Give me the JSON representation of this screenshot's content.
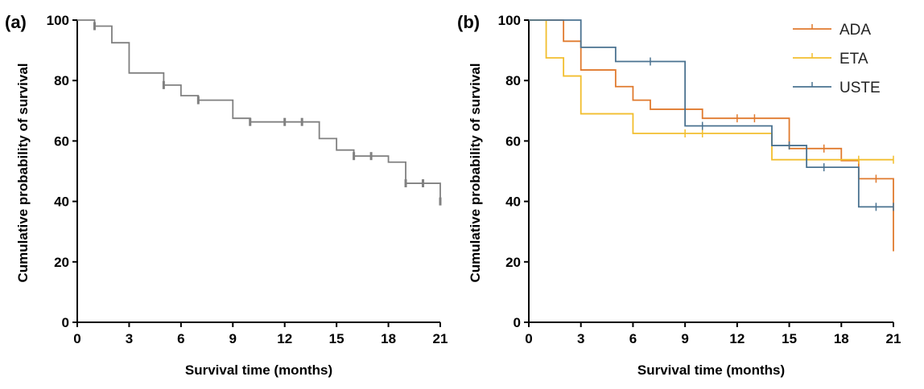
{
  "chart_data": [
    {
      "panel_label": "(a)",
      "type": "line",
      "step": true,
      "xlabel": "Survival time (months)",
      "ylabel": "Cumulative probability of survival",
      "xlim": [
        0,
        21
      ],
      "ylim": [
        0,
        100
      ],
      "xticks": [
        0,
        3,
        6,
        9,
        12,
        15,
        18,
        21
      ],
      "yticks": [
        0,
        20,
        40,
        60,
        80,
        100
      ],
      "grid": false,
      "legend": false,
      "series": [
        {
          "color": "#808080",
          "steps": [
            [
              0,
              100
            ],
            [
              1,
              98
            ],
            [
              2,
              92.5
            ],
            [
              3,
              82.5
            ],
            [
              5,
              78.5
            ],
            [
              6,
              75
            ],
            [
              7,
              73.5
            ],
            [
              9,
              67.5
            ],
            [
              10,
              66.3
            ],
            [
              14,
              60.8
            ],
            [
              15,
              57
            ],
            [
              16,
              55
            ],
            [
              18,
              53
            ],
            [
              19,
              46
            ],
            [
              21,
              40
            ]
          ],
          "end": 21,
          "censored": [
            [
              1,
              98
            ],
            [
              5,
              78.5
            ],
            [
              7,
              73.5
            ],
            [
              10,
              66.3
            ],
            [
              12,
              66.3
            ],
            [
              13,
              66.3
            ],
            [
              16,
              55
            ],
            [
              17,
              55
            ],
            [
              19,
              46
            ],
            [
              20,
              46
            ],
            [
              21,
              40
            ]
          ]
        }
      ]
    },
    {
      "panel_label": "(b)",
      "type": "line",
      "step": true,
      "xlabel": "Survival time (months)",
      "ylabel": "Cumulative probability of survival",
      "xlim": [
        0,
        21
      ],
      "ylim": [
        0,
        100
      ],
      "xticks": [
        0,
        3,
        6,
        9,
        12,
        15,
        18,
        21
      ],
      "yticks": [
        0,
        20,
        40,
        60,
        80,
        100
      ],
      "grid": false,
      "legend": "top-right",
      "series": [
        {
          "name": "ADA",
          "color": "#E07A2E",
          "steps": [
            [
              0,
              100
            ],
            [
              2,
              93
            ],
            [
              3,
              83.5
            ],
            [
              5,
              78
            ],
            [
              6,
              73.5
            ],
            [
              7,
              70.5
            ],
            [
              10,
              67.5
            ],
            [
              15,
              57.5
            ],
            [
              18,
              53.5
            ],
            [
              19,
              47.5
            ],
            [
              21,
              23.5
            ]
          ],
          "end": 21,
          "censored": [
            [
              12,
              67.5
            ],
            [
              13,
              67.5
            ],
            [
              17,
              57.5
            ],
            [
              20,
              47.5
            ]
          ]
        },
        {
          "name": "ETA",
          "color": "#F2BE2E",
          "steps": [
            [
              0,
              100
            ],
            [
              1,
              87.5
            ],
            [
              2,
              81.5
            ],
            [
              3,
              69
            ],
            [
              6,
              62.5
            ],
            [
              14,
              53.8
            ]
          ],
          "end": 21,
          "censored": [
            [
              9,
              62.5
            ],
            [
              10,
              62.5
            ],
            [
              19,
              53.8
            ],
            [
              21,
              53.8
            ]
          ]
        },
        {
          "name": "USTE",
          "color": "#4A7290",
          "steps": [
            [
              0,
              100
            ],
            [
              3,
              91
            ],
            [
              5,
              86.3
            ],
            [
              9,
              65
            ],
            [
              14,
              58.5
            ],
            [
              16,
              51.3
            ],
            [
              19,
              38.2
            ]
          ],
          "end": 21,
          "censored": [
            [
              7,
              86.3
            ],
            [
              10,
              65
            ],
            [
              15,
              58.5
            ],
            [
              17,
              51.3
            ],
            [
              20,
              38.2
            ],
            [
              21,
              38.2
            ]
          ]
        }
      ]
    }
  ]
}
